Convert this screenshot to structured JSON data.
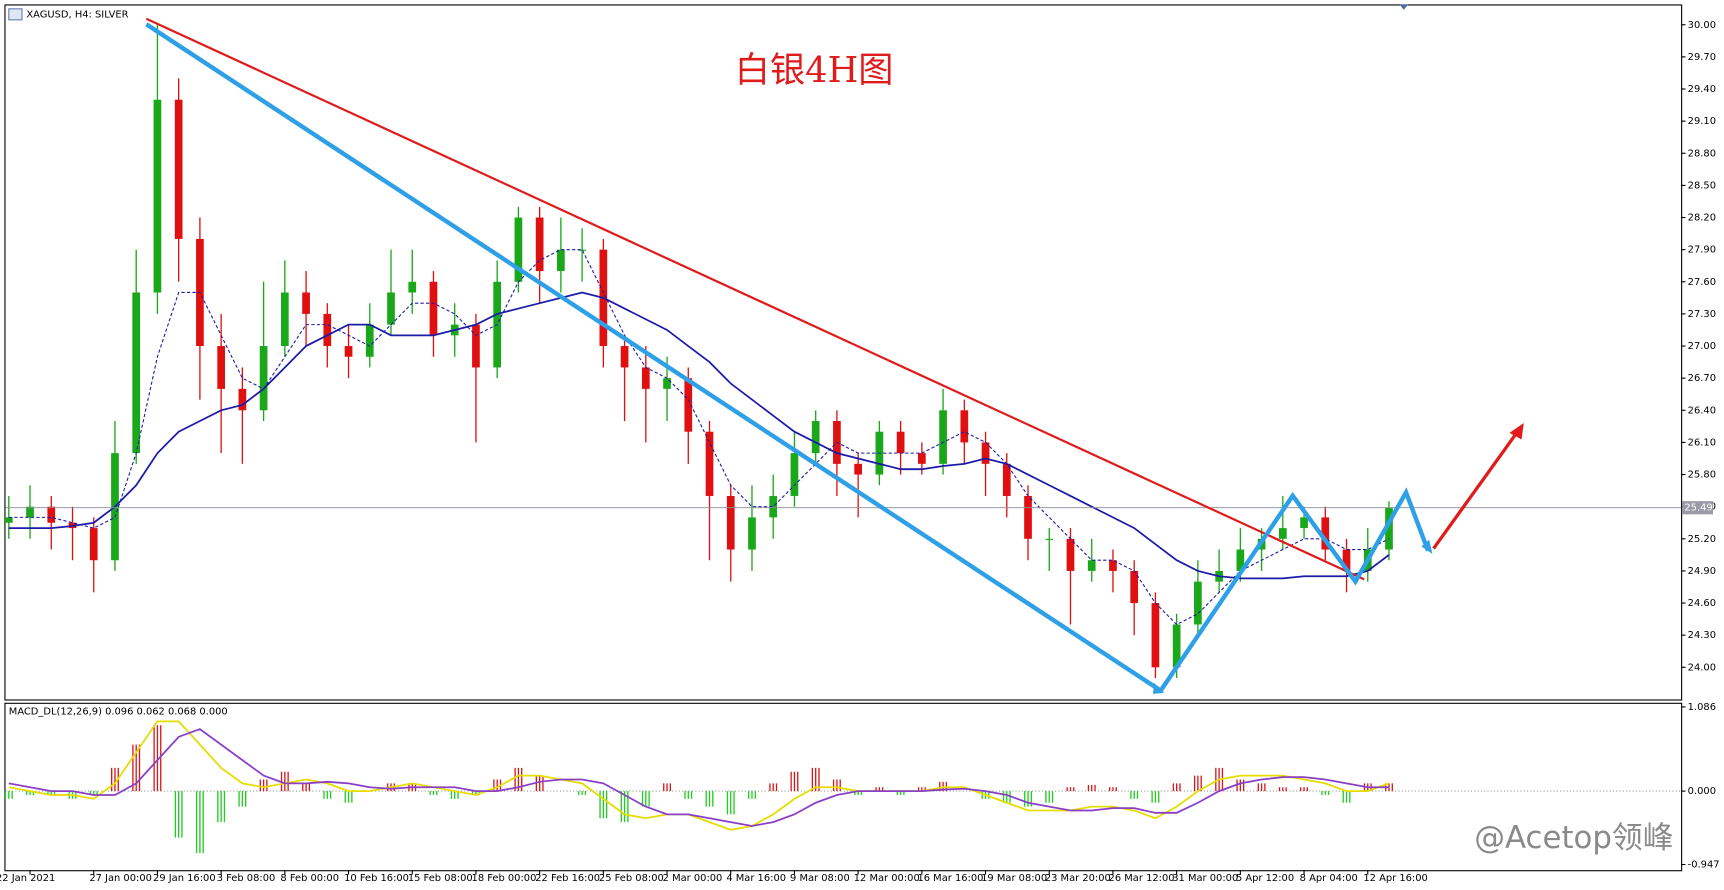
{
  "chart_data": [
    {
      "type": "candlestick",
      "title": "XAGUSD, H4:  SILVER",
      "annotation": "白银4H图",
      "categories": [
        null,
        "22 Jan 2021",
        null,
        null,
        "27 Jan 00:00",
        null,
        null,
        "29 Jan 16:00",
        null,
        null,
        "3 Feb 08:00",
        null,
        null,
        "8 Feb 00:00",
        null,
        null,
        "10 Feb 16:00",
        null,
        null,
        "15 Feb 08:00",
        null,
        null,
        "18 Feb 00:00",
        null,
        null,
        "22 Feb 16:00",
        null,
        null,
        "25 Feb 08:00",
        null,
        null,
        "2 Mar 00:00",
        null,
        null,
        "4 Mar 16:00",
        null,
        null,
        "9 Mar 08:00",
        null,
        null,
        "12 Mar 00:00",
        null,
        null,
        "16 Mar 16:00",
        null,
        null,
        "19 Mar 08:00",
        null,
        null,
        "23 Mar 20:00",
        null,
        null,
        "26 Mar 12:00",
        null,
        null,
        "31 Mar 00:00",
        null,
        null,
        "5 Apr 12:00",
        null,
        null,
        "8 Apr 04:00",
        null,
        null,
        "12 Apr 16:00",
        null
      ],
      "open": [
        25.35,
        25.4,
        25.5,
        25.35,
        25.3,
        25.0,
        26.0,
        27.5,
        29.3,
        28.0,
        27.0,
        26.6,
        26.4,
        27.0,
        27.5,
        27.3,
        27.0,
        26.9,
        27.2,
        27.5,
        27.6,
        27.1,
        27.2,
        26.8,
        27.6,
        28.2,
        27.7,
        27.9,
        27.9,
        27.0,
        26.8,
        26.6,
        26.7,
        26.2,
        25.6,
        25.1,
        25.4,
        25.6,
        26.0,
        26.3,
        25.9,
        25.8,
        26.2,
        26.0,
        25.9,
        26.4,
        26.1,
        25.9,
        25.6,
        25.2,
        25.2,
        24.9,
        25.0,
        24.9,
        24.6,
        24.0,
        24.4,
        24.8,
        24.9,
        25.1,
        25.2,
        25.3,
        25.4,
        25.1,
        24.9,
        25.1
      ],
      "high": [
        25.6,
        25.7,
        25.6,
        25.5,
        25.4,
        26.3,
        27.9,
        30.0,
        29.5,
        28.2,
        27.3,
        26.8,
        27.6,
        27.8,
        27.7,
        27.4,
        27.2,
        27.4,
        27.9,
        27.9,
        27.7,
        27.4,
        27.3,
        27.8,
        28.3,
        28.3,
        28.2,
        28.1,
        28.0,
        27.1,
        27.0,
        26.9,
        26.8,
        26.3,
        25.7,
        25.7,
        25.8,
        26.2,
        26.4,
        26.4,
        26.0,
        26.3,
        26.3,
        26.1,
        26.6,
        26.5,
        26.2,
        26.0,
        25.7,
        25.3,
        25.3,
        25.2,
        25.1,
        25.0,
        24.7,
        24.5,
        25.0,
        25.1,
        25.3,
        25.3,
        25.6,
        25.5,
        25.5,
        25.2,
        25.3,
        25.55
      ],
      "low": [
        25.2,
        25.2,
        25.1,
        25.0,
        24.7,
        24.9,
        25.9,
        27.3,
        27.6,
        26.5,
        26.0,
        25.9,
        26.3,
        26.9,
        27.0,
        26.8,
        26.7,
        26.8,
        27.1,
        27.3,
        26.9,
        26.9,
        26.1,
        26.7,
        27.5,
        27.4,
        27.5,
        27.6,
        26.8,
        26.3,
        26.1,
        26.3,
        25.9,
        25.0,
        24.8,
        24.9,
        25.2,
        25.5,
        25.9,
        25.6,
        25.4,
        25.7,
        25.8,
        25.8,
        25.8,
        25.9,
        25.6,
        25.4,
        25.0,
        24.9,
        24.4,
        24.8,
        24.7,
        24.3,
        23.9,
        23.9,
        24.3,
        24.7,
        24.8,
        24.9,
        25.1,
        25.2,
        25.0,
        24.7,
        24.8,
        25.0
      ],
      "close": [
        25.4,
        25.5,
        25.35,
        25.3,
        25.0,
        26.0,
        27.5,
        29.3,
        28.0,
        27.0,
        26.6,
        26.4,
        27.0,
        27.5,
        27.3,
        27.0,
        26.9,
        27.2,
        27.5,
        27.6,
        27.1,
        27.2,
        26.8,
        27.6,
        28.2,
        27.7,
        27.9,
        27.9,
        27.0,
        26.8,
        26.6,
        26.7,
        26.2,
        25.6,
        25.1,
        25.4,
        25.6,
        26.0,
        26.3,
        25.9,
        25.8,
        26.2,
        26.0,
        25.9,
        26.4,
        26.1,
        25.9,
        25.6,
        25.2,
        25.2,
        24.9,
        25.0,
        24.9,
        24.6,
        24.0,
        24.4,
        24.8,
        24.9,
        25.1,
        25.2,
        25.3,
        25.4,
        25.1,
        24.9,
        25.1,
        25.49
      ],
      "up_color": "#1aa81a",
      "down_color": "#e01010",
      "lines": [
        {
          "color": "#1c1ca8",
          "dashed": false,
          "values": [
            25.3,
            25.3,
            25.3,
            25.32,
            25.35,
            25.5,
            25.7,
            26.0,
            26.2,
            26.3,
            26.4,
            26.45,
            26.6,
            26.8,
            27.0,
            27.1,
            27.2,
            27.2,
            27.1,
            27.1,
            27.1,
            27.15,
            27.2,
            27.3,
            27.35,
            27.4,
            27.45,
            27.5,
            27.45,
            27.35,
            27.25,
            27.15,
            27.0,
            26.85,
            26.65,
            26.5,
            26.35,
            26.2,
            26.1,
            26.0,
            25.95,
            25.9,
            25.85,
            25.85,
            25.88,
            25.9,
            25.95,
            25.9,
            25.8,
            25.7,
            25.6,
            25.5,
            25.4,
            25.3,
            25.15,
            25.0,
            24.9,
            24.85,
            24.83,
            24.83,
            24.83,
            24.85,
            24.85,
            24.85,
            24.9,
            25.05
          ]
        },
        {
          "color": "#1c1ca8",
          "dashed": true,
          "values": [
            25.4,
            25.4,
            25.4,
            25.35,
            25.3,
            25.4,
            26.0,
            26.9,
            27.5,
            27.5,
            27.1,
            26.7,
            26.6,
            26.9,
            27.2,
            27.2,
            27.1,
            27.0,
            27.2,
            27.4,
            27.4,
            27.3,
            27.1,
            27.2,
            27.6,
            27.8,
            27.9,
            27.9,
            27.5,
            27.1,
            26.8,
            26.7,
            26.5,
            26.1,
            25.7,
            25.5,
            25.5,
            25.7,
            25.9,
            26.1,
            26.0,
            26.0,
            26.0,
            26.0,
            26.1,
            26.2,
            26.1,
            25.9,
            25.6,
            25.4,
            25.2,
            25.0,
            25.0,
            24.9,
            24.6,
            24.4,
            24.5,
            24.7,
            24.9,
            25.0,
            25.1,
            25.2,
            25.2,
            25.1,
            25.1,
            25.2
          ]
        }
      ],
      "ylim": [
        23.7,
        30.19
      ],
      "yticks": [
        {
          "value": 24.0,
          "label": "24.00"
        },
        {
          "value": 24.3,
          "label": "24.30"
        },
        {
          "value": 24.6,
          "label": "24.60"
        },
        {
          "value": 24.9,
          "label": "24.90"
        },
        {
          "value": 25.2,
          "label": "25.20"
        },
        {
          "value": 25.5,
          "label": "25.50"
        },
        {
          "value": 25.8,
          "label": "25.80"
        },
        {
          "value": 26.1,
          "label": "26.10"
        },
        {
          "value": 26.4,
          "label": "26.40"
        },
        {
          "value": 26.7,
          "label": "26.70"
        },
        {
          "value": 27.0,
          "label": "27.00"
        },
        {
          "value": 27.3,
          "label": "27.30"
        },
        {
          "value": 27.6,
          "label": "27.60"
        },
        {
          "value": 27.9,
          "label": "27.90"
        },
        {
          "value": 28.2,
          "label": "28.20"
        },
        {
          "value": 28.5,
          "label": "28.50"
        },
        {
          "value": 28.8,
          "label": "28.80"
        },
        {
          "value": 29.1,
          "label": "29.10"
        },
        {
          "value": 29.4,
          "label": "29.40"
        },
        {
          "value": 29.7,
          "label": "29.70"
        },
        {
          "value": 30.0,
          "label": "30.00"
        }
      ],
      "grid": false
    },
    {
      "type": "macd",
      "title": "MACD_DL(12,26,9) 0.096 0.062 0.068 0.000",
      "values": [
        -0.1,
        -0.05,
        -0.05,
        -0.1,
        -0.05,
        0.3,
        0.6,
        0.85,
        -0.6,
        -0.8,
        -0.4,
        -0.2,
        0.15,
        0.25,
        0.1,
        -0.1,
        -0.15,
        0,
        0.1,
        0.1,
        -0.05,
        -0.1,
        -0.05,
        0.15,
        0.3,
        0.2,
        0,
        -0.05,
        -0.35,
        -0.4,
        -0.2,
        0.1,
        -0.1,
        -0.2,
        -0.3,
        -0.1,
        0.1,
        0.25,
        0.3,
        0.15,
        -0.05,
        0.05,
        -0.05,
        0.05,
        0.12,
        0,
        -0.1,
        -0.15,
        -0.2,
        -0.15,
        0.05,
        0.08,
        0.05,
        -0.1,
        -0.15,
        0.1,
        0.2,
        0.3,
        0.15,
        0.1,
        0.05,
        0.05,
        -0.05,
        -0.15,
        0.1,
        0.1
      ],
      "up_color": "#d81818",
      "down_color": "#22cc22",
      "lines": [
        {
          "color": "#e6dc00",
          "dashed": false,
          "values": [
            0.05,
            0.0,
            -0.05,
            -0.05,
            -0.1,
            0.1,
            0.5,
            0.9,
            0.9,
            0.6,
            0.3,
            0.1,
            0.05,
            0.1,
            0.15,
            0.1,
            0.0,
            0.0,
            0.05,
            0.1,
            0.05,
            0.0,
            -0.05,
            0.05,
            0.2,
            0.2,
            0.15,
            0.1,
            -0.1,
            -0.3,
            -0.35,
            -0.3,
            -0.3,
            -0.4,
            -0.5,
            -0.45,
            -0.3,
            -0.1,
            0.05,
            0.05,
            0.0,
            0.0,
            0.0,
            0.0,
            0.05,
            0.05,
            -0.05,
            -0.15,
            -0.25,
            -0.25,
            -0.25,
            -0.2,
            -0.2,
            -0.25,
            -0.35,
            -0.2,
            0.0,
            0.15,
            0.2,
            0.2,
            0.2,
            0.15,
            0.1,
            0.0,
            0.0,
            0.1
          ]
        },
        {
          "color": "#8a3fc7",
          "dashed": false,
          "values": [
            0.1,
            0.05,
            0.0,
            0.0,
            -0.05,
            -0.05,
            0.1,
            0.4,
            0.7,
            0.8,
            0.6,
            0.4,
            0.2,
            0.1,
            0.1,
            0.12,
            0.1,
            0.05,
            0.03,
            0.05,
            0.05,
            0.05,
            0.0,
            0.0,
            0.05,
            0.12,
            0.15,
            0.15,
            0.1,
            -0.05,
            -0.2,
            -0.3,
            -0.3,
            -0.35,
            -0.4,
            -0.45,
            -0.4,
            -0.3,
            -0.15,
            -0.05,
            0.0,
            0.0,
            0.0,
            0.0,
            0.02,
            0.03,
            0.0,
            -0.05,
            -0.15,
            -0.2,
            -0.25,
            -0.25,
            -0.22,
            -0.22,
            -0.28,
            -0.28,
            -0.15,
            0.0,
            0.1,
            0.15,
            0.18,
            0.18,
            0.15,
            0.1,
            0.05,
            0.05
          ]
        }
      ],
      "ylim": [
        -1.02,
        1.14
      ],
      "yticks": [
        1.086,
        {
          "value": 0,
          "label": "0.000"
        },
        -0.947
      ]
    }
  ],
  "watermark": "@Acetop领峰"
}
